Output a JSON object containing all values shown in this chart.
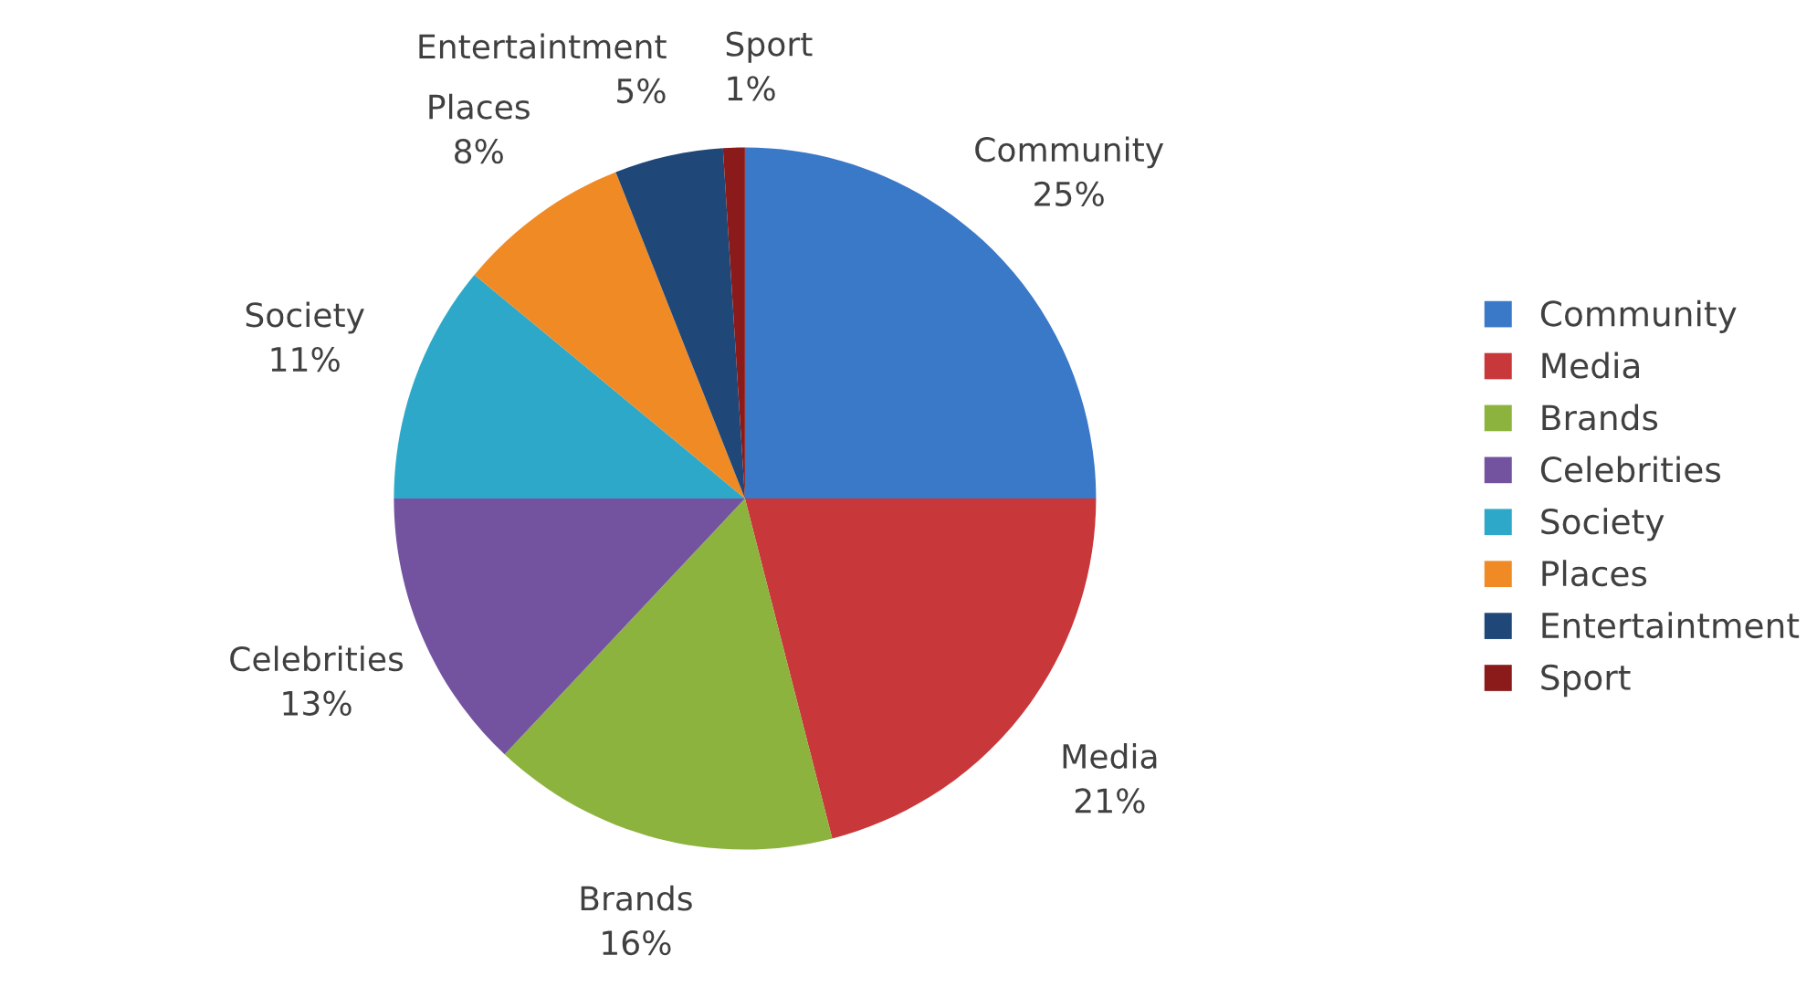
{
  "chart_data": {
    "type": "pie",
    "categories": [
      "Community",
      "Media",
      "Brands",
      "Celebrities",
      "Society",
      "Places",
      "Entertaintment",
      "Sport"
    ],
    "values": [
      25,
      21,
      16,
      13,
      11,
      8,
      5,
      1
    ],
    "colors": [
      "#3a78c8",
      "#c8373a",
      "#8cb33e",
      "#7353a0",
      "#2ea8c8",
      "#f08a24",
      "#1f4878",
      "#8b1a1a"
    ],
    "value_labels": [
      "25%",
      "21%",
      "16%",
      "13%",
      "11%",
      "8%",
      "5%",
      "1%"
    ],
    "legend": "right"
  }
}
